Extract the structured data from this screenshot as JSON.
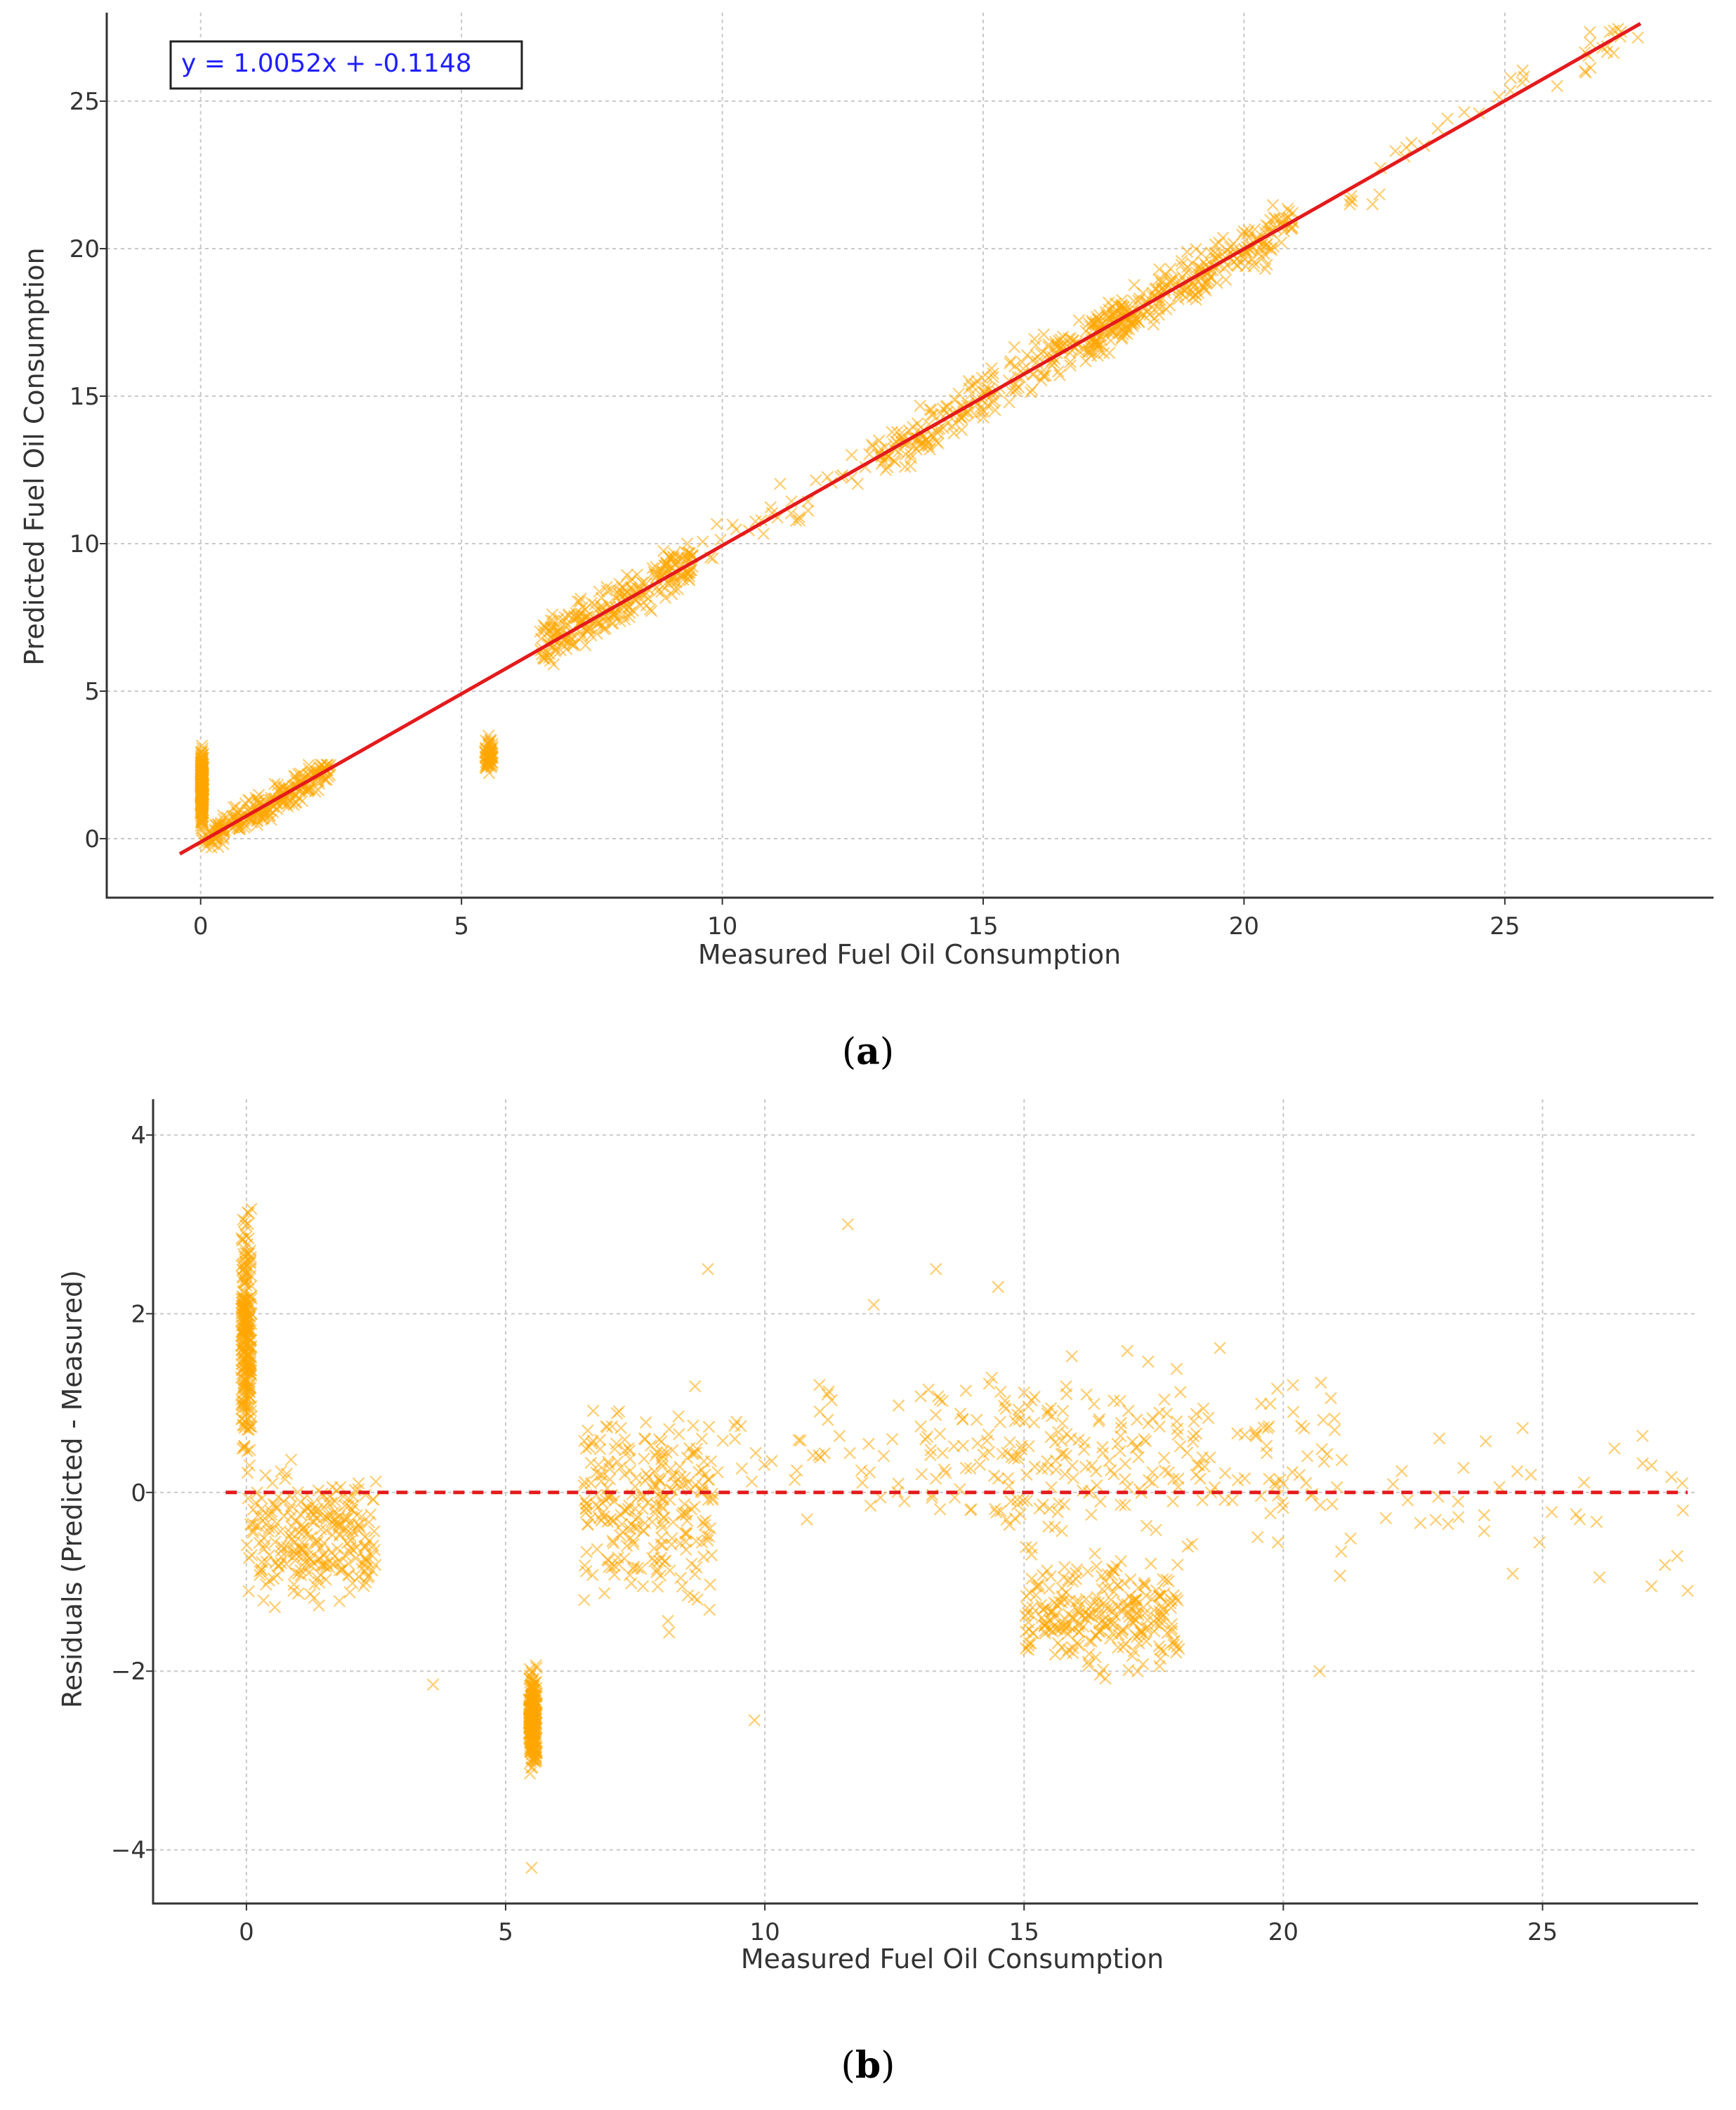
{
  "figure": {
    "caption_a_letter": "a",
    "caption_b_letter": "b",
    "open_paren": "(",
    "close_paren": ")"
  },
  "chart_data": [
    {
      "id": "a",
      "type": "scatter",
      "title": "",
      "xlabel": "Measured Fuel Oil Consumption",
      "ylabel": "Predicted Fuel Oil Consumption",
      "xlim": [
        -1.8,
        29.0
      ],
      "ylim": [
        -2.0,
        28.0
      ],
      "xticks": [
        0,
        5,
        10,
        15,
        20,
        25
      ],
      "yticks": [
        0,
        5,
        10,
        15,
        20,
        25
      ],
      "grid": true,
      "marker": "x",
      "marker_color": "#FFA500",
      "fit_line": {
        "label": "y = 1.0052x + -0.1148",
        "slope": 1.0052,
        "intercept": -0.1148,
        "x_range": [
          -0.4,
          27.6
        ],
        "color": "#E41A1C"
      },
      "point_clusters": [
        {
          "x": [
            0.0,
            0.05
          ],
          "y": [
            0.0,
            3.5
          ],
          "density": "high"
        },
        {
          "x": [
            0.0,
            2.5
          ],
          "y": [
            -0.3,
            2.5
          ],
          "density": "high"
        },
        {
          "x": [
            5.45,
            5.6
          ],
          "y": [
            2.0,
            3.6
          ],
          "density": "medium"
        },
        {
          "x": [
            6.5,
            9.5
          ],
          "y": [
            5.0,
            10.0
          ],
          "density": "high"
        },
        {
          "x": [
            9.0,
            13.0
          ],
          "y": [
            9.5,
            14.0
          ],
          "density": "low"
        },
        {
          "x": [
            13.0,
            18.0
          ],
          "y": [
            12.5,
            18.5
          ],
          "density": "high"
        },
        {
          "x": [
            17.0,
            21.0
          ],
          "y": [
            16.5,
            21.5
          ],
          "density": "high"
        },
        {
          "x": [
            22.0,
            27.6
          ],
          "y": [
            21.5,
            27.5
          ],
          "density": "low"
        }
      ]
    },
    {
      "id": "b",
      "type": "scatter",
      "title": "",
      "xlabel": "Measured Fuel Oil Consumption",
      "ylabel": "Residuals (Predicted - Measured)",
      "xlim": [
        -1.8,
        28.0
      ],
      "ylim": [
        -4.6,
        4.4
      ],
      "xticks": [
        0,
        5,
        10,
        15,
        20,
        25
      ],
      "yticks": [
        -4,
        -2,
        0,
        2,
        4
      ],
      "ytick_labels": [
        "−4",
        "−2",
        "0",
        "2",
        "4"
      ],
      "grid": true,
      "marker": "x",
      "marker_color": "#FFA500",
      "reference_line": {
        "y": 0,
        "x_range": [
          -0.4,
          27.8
        ],
        "style": "dashed",
        "color": "#E41A1C"
      },
      "point_clusters": [
        {
          "x": [
            -0.1,
            0.1
          ],
          "y": [
            0.0,
            3.5
          ],
          "density": "high"
        },
        {
          "x": [
            0.0,
            2.5
          ],
          "y": [
            -1.5,
            0.5
          ],
          "density": "high"
        },
        {
          "x": [
            5.45,
            5.6
          ],
          "y": [
            -3.3,
            -1.8
          ],
          "density": "high"
        },
        {
          "x": [
            6.5,
            9.0
          ],
          "y": [
            -1.8,
            1.5
          ],
          "density": "high"
        },
        {
          "x": [
            9.0,
            13.0
          ],
          "y": [
            -0.5,
            1.6
          ],
          "density": "low"
        },
        {
          "x": [
            13.0,
            21.0
          ],
          "y": [
            -1.0,
            1.8
          ],
          "density": "high"
        },
        {
          "x": [
            15.0,
            18.0
          ],
          "y": [
            -2.2,
            -0.5
          ],
          "density": "high"
        },
        {
          "x": [
            21.0,
            27.8
          ],
          "y": [
            -1.1,
            1.0
          ],
          "density": "low"
        }
      ],
      "outliers": [
        {
          "x": 11.6,
          "y": 3.0
        },
        {
          "x": 13.3,
          "y": 2.5
        },
        {
          "x": 8.9,
          "y": 2.5
        },
        {
          "x": 12.1,
          "y": 2.1
        },
        {
          "x": 14.5,
          "y": 2.3
        },
        {
          "x": 9.8,
          "y": -2.55
        },
        {
          "x": 5.5,
          "y": -4.2
        },
        {
          "x": 3.6,
          "y": -2.15
        },
        {
          "x": 20.7,
          "y": -2.0
        },
        {
          "x": 26.1,
          "y": -0.95
        },
        {
          "x": 27.1,
          "y": -1.05
        },
        {
          "x": 27.8,
          "y": -1.1
        }
      ]
    }
  ]
}
